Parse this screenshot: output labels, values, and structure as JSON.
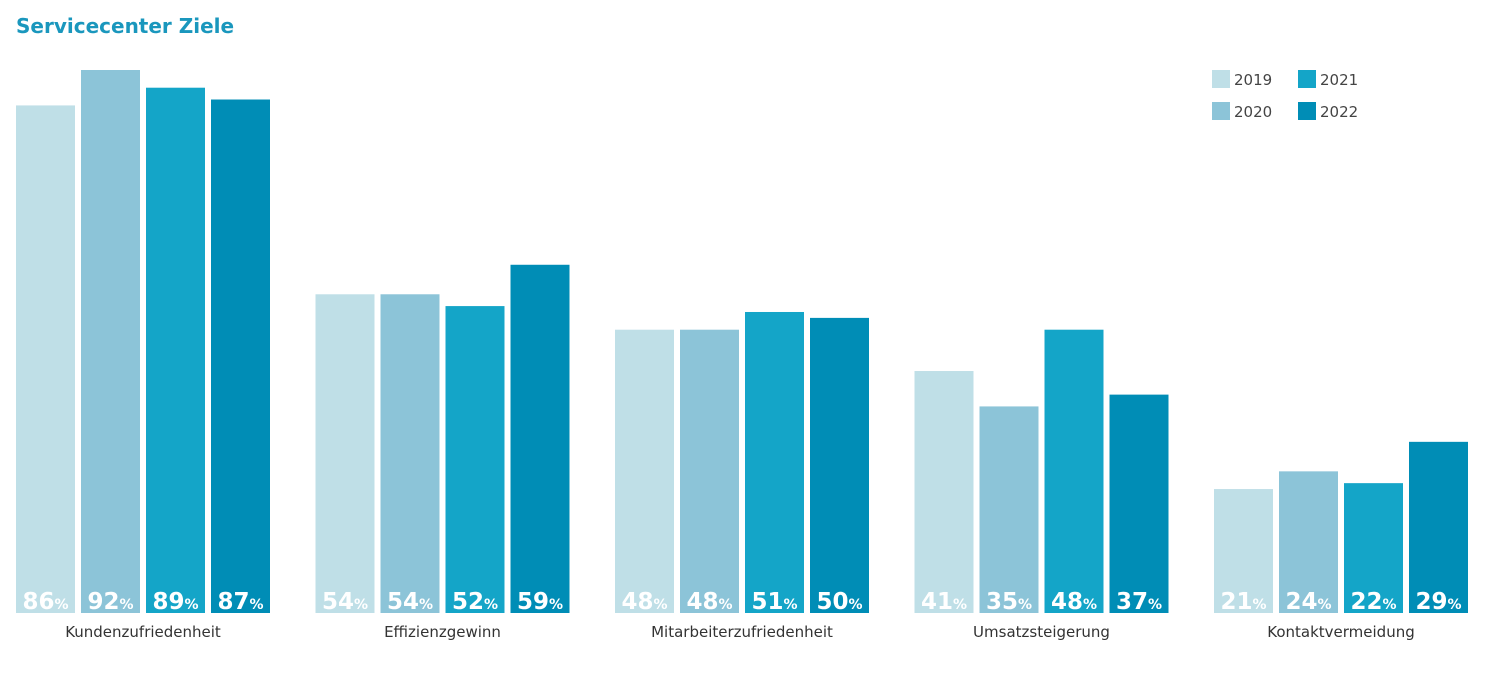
{
  "chart_data": {
    "type": "bar",
    "title": "Servicecenter Ziele",
    "categories": [
      "Kundenzufriedenheit",
      "Effizienzgewinn",
      "Mitarbeiterzufriedenheit",
      "Umsatzsteigerung",
      "Kontaktvermeidung"
    ],
    "series": [
      {
        "name": "2019",
        "color": "#bfdfe7",
        "values": [
          86,
          54,
          48,
          41,
          21
        ]
      },
      {
        "name": "2020",
        "color": "#8cc4d8",
        "values": [
          92,
          54,
          48,
          35,
          24
        ]
      },
      {
        "name": "2021",
        "color": "#14a5c8",
        "values": [
          89,
          52,
          51,
          48,
          22
        ]
      },
      {
        "name": "2022",
        "color": "#008db6",
        "values": [
          87,
          59,
          50,
          37,
          29
        ]
      }
    ],
    "value_suffix": "%",
    "ylim": [
      0,
      92
    ],
    "legend_position": "top-right",
    "grid": false
  }
}
